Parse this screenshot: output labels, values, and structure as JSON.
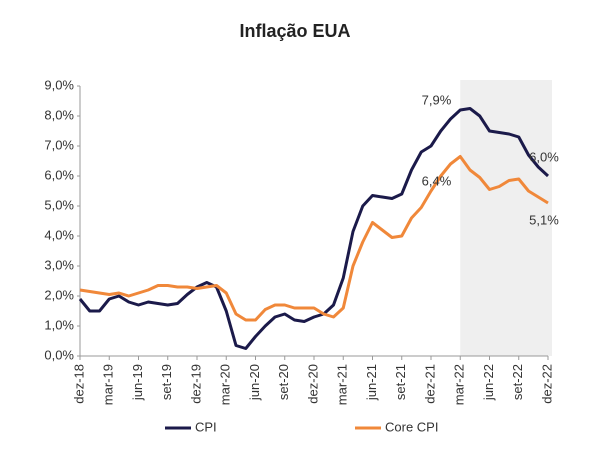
{
  "chart_data": {
    "type": "line",
    "title": "Inflação EUA",
    "categories": [
      "dez-18",
      null,
      null,
      "mar-19",
      null,
      null,
      "jun-19",
      null,
      null,
      "set-19",
      null,
      null,
      "dez-19",
      null,
      null,
      "mar-20",
      null,
      null,
      "jun-20",
      null,
      null,
      "set-20",
      null,
      null,
      "dez-20",
      null,
      null,
      "mar-21",
      null,
      null,
      "jun-21",
      null,
      null,
      "set-21",
      null,
      null,
      "dez-21",
      null,
      null,
      "mar-22",
      null,
      null,
      "jun-22",
      null,
      null,
      "set-22",
      null,
      null,
      "dez-22"
    ],
    "series": [
      {
        "name": "CPI",
        "color": "#1b1a4a",
        "values": [
          1.9,
          1.5,
          1.5,
          1.9,
          2.0,
          1.8,
          1.7,
          1.8,
          1.75,
          1.7,
          1.75,
          2.05,
          2.3,
          2.45,
          2.3,
          1.5,
          0.35,
          0.25,
          0.65,
          1.0,
          1.3,
          1.4,
          1.2,
          1.15,
          1.3,
          1.4,
          1.7,
          2.6,
          4.15,
          5.0,
          5.35,
          5.3,
          5.25,
          5.4,
          6.2,
          6.8,
          7.0,
          7.5,
          7.9,
          8.2,
          8.25,
          8.0,
          7.5,
          7.45,
          7.4,
          7.3,
          6.7,
          6.3,
          6.0
        ],
        "value_labels": [
          null,
          null,
          null,
          null,
          null,
          null,
          null,
          null,
          null,
          null,
          null,
          null,
          null,
          null,
          null,
          null,
          null,
          null,
          null,
          null,
          null,
          null,
          null,
          null,
          null,
          null,
          null,
          null,
          null,
          null,
          null,
          null,
          null,
          null,
          null,
          null,
          null,
          null,
          "7,9%",
          null,
          null,
          null,
          null,
          null,
          null,
          null,
          null,
          null,
          "6,0%"
        ]
      },
      {
        "name": "Core CPI",
        "color": "#f0883a",
        "values": [
          2.2,
          2.15,
          2.1,
          2.05,
          2.1,
          2.0,
          2.1,
          2.2,
          2.35,
          2.35,
          2.3,
          2.3,
          2.25,
          2.3,
          2.35,
          2.1,
          1.4,
          1.2,
          1.2,
          1.55,
          1.7,
          1.7,
          1.6,
          1.6,
          1.6,
          1.4,
          1.3,
          1.6,
          3.0,
          3.8,
          4.45,
          4.2,
          3.95,
          4.0,
          4.6,
          4.95,
          5.5,
          6.0,
          6.4,
          6.65,
          6.2,
          5.95,
          5.55,
          5.65,
          5.85,
          5.9,
          5.5,
          5.3,
          5.1
        ],
        "value_labels": [
          null,
          null,
          null,
          null,
          null,
          null,
          null,
          null,
          null,
          null,
          null,
          null,
          null,
          null,
          null,
          null,
          null,
          null,
          null,
          null,
          null,
          null,
          null,
          null,
          null,
          null,
          null,
          null,
          null,
          null,
          null,
          null,
          null,
          null,
          null,
          null,
          null,
          null,
          "6,4%",
          null,
          null,
          null,
          null,
          null,
          null,
          null,
          null,
          null,
          "5,1%"
        ]
      }
    ],
    "ylim": [
      0,
      9
    ],
    "yticks": [
      {
        "value": 0,
        "label": "0,0%"
      },
      {
        "value": 1,
        "label": "1,0%"
      },
      {
        "value": 2,
        "label": "2,0%"
      },
      {
        "value": 3,
        "label": "3,0%"
      },
      {
        "value": 4,
        "label": "4,0%"
      },
      {
        "value": 5,
        "label": "5,0%"
      },
      {
        "value": 6,
        "label": "6,0%"
      },
      {
        "value": 7,
        "label": "7,0%"
      },
      {
        "value": 8,
        "label": "8,0%"
      },
      {
        "value": 9,
        "label": "9,0%"
      }
    ],
    "grid": false,
    "shade_from": "mar-22",
    "shade_color": "#efefef",
    "legend": "bottom"
  }
}
